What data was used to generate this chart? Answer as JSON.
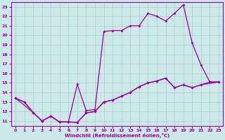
{
  "xlabel": "Windchill (Refroidissement éolien,°C)",
  "bg_color": "#cce8e8",
  "line_color": "#990099",
  "grid_color": "#aacccc",
  "xlim": [
    -0.5,
    23.5
  ],
  "ylim": [
    10.5,
    23.5
  ],
  "xticks": [
    0,
    1,
    2,
    3,
    4,
    5,
    6,
    7,
    8,
    9,
    10,
    11,
    12,
    13,
    14,
    15,
    16,
    17,
    18,
    19,
    20,
    21,
    22,
    23
  ],
  "yticks": [
    11,
    12,
    13,
    14,
    15,
    16,
    17,
    18,
    19,
    20,
    21,
    22,
    23
  ],
  "line1_x": [
    0,
    1,
    2,
    3,
    4,
    5,
    6,
    7,
    8,
    9,
    10,
    11,
    12,
    13,
    14,
    15,
    16,
    17,
    18,
    19,
    20,
    21,
    22,
    23
  ],
  "line1_y": [
    13.4,
    13.0,
    11.9,
    11.0,
    11.5,
    10.9,
    10.9,
    10.85,
    11.85,
    12.0,
    13.0,
    13.2,
    13.6,
    14.0,
    14.6,
    15.0,
    15.2,
    15.5,
    14.5,
    14.8,
    14.5,
    14.8,
    15.1,
    15.1
  ],
  "line2_x": [
    0,
    1,
    2,
    3,
    4,
    5,
    6,
    7,
    8,
    9,
    10,
    11,
    12,
    13,
    14,
    15,
    16,
    17,
    18,
    19,
    20,
    21,
    22,
    23
  ],
  "line2_y": [
    13.4,
    13.0,
    11.9,
    11.0,
    11.5,
    10.9,
    10.9,
    14.85,
    12.1,
    12.2,
    20.4,
    20.5,
    20.5,
    21.0,
    21.0,
    22.3,
    22.0,
    21.5,
    22.3,
    23.2,
    19.2,
    16.9,
    15.1,
    15.1
  ],
  "line3_x": [
    0,
    2,
    3,
    4,
    5,
    6,
    7,
    8,
    9,
    10,
    11,
    12,
    13,
    14,
    15,
    16,
    17,
    18,
    19,
    20,
    21,
    23
  ],
  "line3_y": [
    13.4,
    11.9,
    11.0,
    11.5,
    10.9,
    10.9,
    10.85,
    11.85,
    12.0,
    13.0,
    13.2,
    13.6,
    14.0,
    14.6,
    15.0,
    15.2,
    15.5,
    14.5,
    14.8,
    14.5,
    14.8,
    15.1
  ]
}
